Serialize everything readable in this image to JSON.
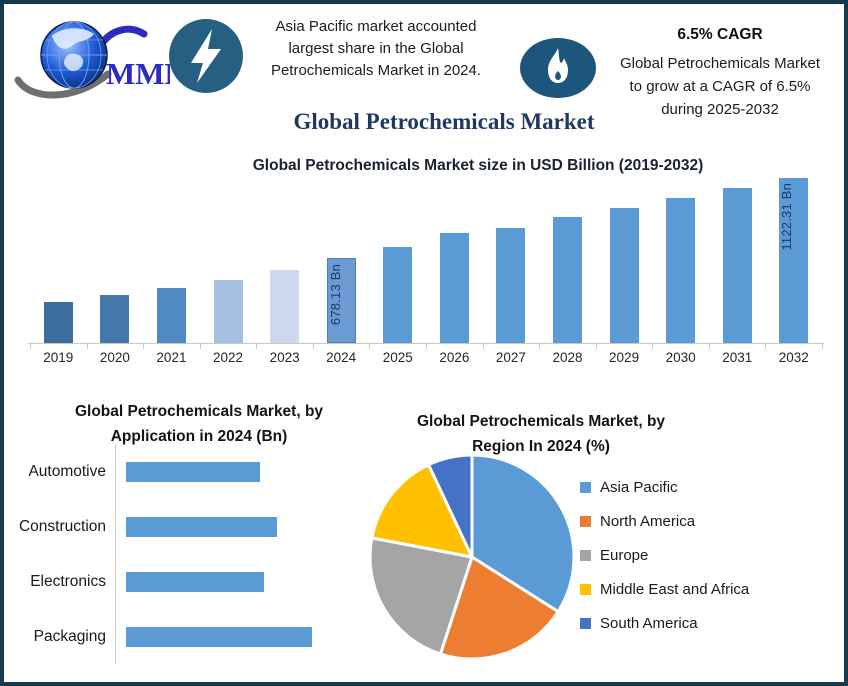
{
  "header": {
    "logo": {
      "text": "MMR",
      "color": "#2b2bbf"
    },
    "bolt_icon_color": "#275f82",
    "flame_icon_color": "#1d567c",
    "callout_lines": [
      "Asia Pacific market accounted",
      "largest share in the Global",
      "Petrochemicals Market in 2024."
    ],
    "cagr_title": "6.5% CAGR",
    "cagr_lines": [
      "Global Petrochemicals Market",
      "to grow at a CAGR of 6.5%",
      "during 2025-2032"
    ]
  },
  "main_title": {
    "text": "Global Petrochemicals Market",
    "color": "#1F3864"
  },
  "chart_data": [
    {
      "type": "bar",
      "title": "Global Petrochemicals Market size in USD Billion (2019-2032)",
      "categories": [
        "2019",
        "2020",
        "2021",
        "2022",
        "2023",
        "2024",
        "2025",
        "2026",
        "2027",
        "2028",
        "2029",
        "2030",
        "2031",
        "2032"
      ],
      "values": [
        494.9,
        527.1,
        561.3,
        597.8,
        636.7,
        678.13,
        722.2,
        769.1,
        819.1,
        872.4,
        929.1,
        989.5,
        1053.8,
        1122.31
      ],
      "values_note": "2024 and 2032 shown as data labels; other values estimated from 6.5% CAGR and bar heights",
      "bar_labels": [
        "",
        "",
        "",
        "",
        "",
        "678.13 Bn",
        "",
        "",
        "",
        "",
        "",
        "",
        "",
        "1122.31 Bn"
      ],
      "heights_pct": [
        24.8,
        29.1,
        33.3,
        38.2,
        44.2,
        51.5,
        58.2,
        66.7,
        69.7,
        76.4,
        81.8,
        87.9,
        93.9,
        100
      ],
      "colors": [
        "#3d6e9e",
        "#4478aa",
        "#4f8ac2",
        "#a6c1e2",
        "#cdd9ee",
        "#6b9bd2",
        "#5b9bd5",
        "#5b9bd5",
        "#5b9bd5",
        "#5b9bd5",
        "#5b9bd5",
        "#5b9bd5",
        "#5b9bd5",
        "#5b9bd5"
      ],
      "border_colors": [
        "",
        "",
        "",
        "",
        "",
        "#4d80b4",
        "",
        "",
        "",
        "",
        "",
        "",
        "",
        ""
      ],
      "xlabel": "",
      "ylabel": "USD Billion",
      "grid": false,
      "y_axis_shown": false
    },
    {
      "type": "bar",
      "orientation": "horizontal",
      "title": "Global Petrochemicals Market, by Application in 2024 (Bn)",
      "title_lines": [
        "Global Petrochemicals Market, by",
        "Application in 2024 (Bn)"
      ],
      "categories": [
        "Automotive",
        "Construction",
        "Electronics",
        "Packaging"
      ],
      "lengths_pct": [
        72,
        81,
        74,
        100
      ],
      "values_note": "no numeric axis or data labels shown; lengths relative to longest bar (Packaging)",
      "bar_color": "#5b9bd5",
      "grid": false
    },
    {
      "type": "pie",
      "title": "Global Petrochemicals Market, by Region In 2024 (%)",
      "title_lines": [
        "Global Petrochemicals Market, by",
        "Region In 2024 (%)"
      ],
      "slices": [
        {
          "label": "Asia Pacific",
          "pct": 34,
          "color": "#5B9BD5"
        },
        {
          "label": "North America",
          "pct": 21,
          "color": "#ED7D31"
        },
        {
          "label": "Europe",
          "pct": 23,
          "color": "#A5A5A5"
        },
        {
          "label": "Middle East and Africa",
          "pct": 15,
          "color": "#FFC000"
        },
        {
          "label": "South America",
          "pct": 7,
          "color": "#4472C4"
        }
      ],
      "legend_position": "right",
      "values_note": "percentages estimated from slice angles; no data labels shown"
    }
  ]
}
